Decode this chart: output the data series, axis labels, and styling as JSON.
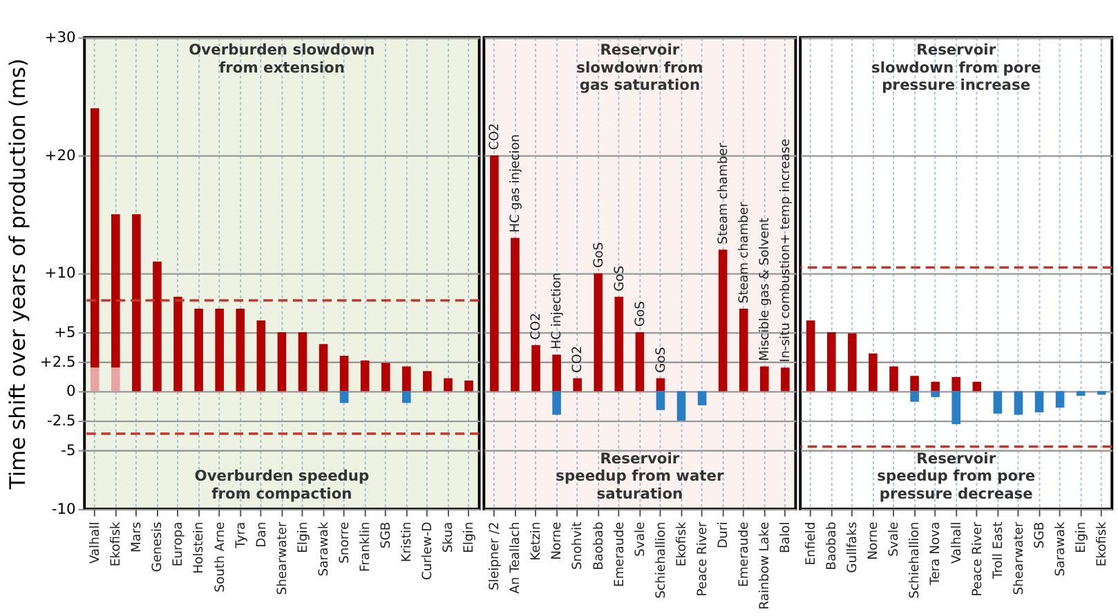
{
  "chart_data": [
    {
      "type": "bar",
      "stacked": true,
      "ylabel": "Time shift over years of production (ms)",
      "categories": [
        "Valhall",
        "Ekofisk",
        "Mars",
        "Genesis",
        "Europa",
        "Holstein",
        "South Arne",
        "Tyra",
        "Dan",
        "Shearwater",
        "Elgin",
        "Sarawak",
        "Snorre",
        "Franklin",
        "SGB",
        "Kristin",
        "Curlew-D",
        "Skua",
        "Elgin"
      ],
      "series": [
        {
          "color": "#e8a3a3",
          "values": [
            2,
            2,
            null,
            null,
            null,
            null,
            null,
            null,
            null,
            null,
            null,
            null,
            null,
            null,
            null,
            null,
            null,
            null,
            null
          ]
        },
        {
          "color": "#b30000",
          "values": [
            22,
            13,
            15,
            11,
            8,
            7,
            7,
            7,
            6,
            5,
            5,
            4,
            3,
            2.6,
            2.4,
            2.1,
            1.7,
            1.1,
            0.9
          ]
        },
        {
          "color": "#2a7fc4",
          "values": [
            null,
            null,
            null,
            null,
            null,
            null,
            null,
            null,
            null,
            null,
            null,
            null,
            -1,
            null,
            null,
            -1,
            null,
            null,
            null
          ]
        }
      ],
      "ylim": [
        -10,
        30
      ],
      "yticks": [
        {
          "value": 30,
          "label": "+30"
        },
        {
          "value": 20,
          "label": "+20"
        },
        {
          "value": 10,
          "label": "+10"
        },
        {
          "value": 5,
          "label": "+5"
        },
        {
          "value": 2.5,
          "label": "+2.5"
        },
        0,
        -2.5,
        -5,
        -10
      ],
      "grid": true,
      "ref_lines": [
        {
          "axis": "y",
          "value": 7.7,
          "color": "#c0392b",
          "line_style": "dashed"
        },
        {
          "axis": "y",
          "value": -3.6,
          "color": "#c0392b",
          "line_style": "dashed"
        }
      ],
      "annotations": [
        "Overburden slowdown\nfrom extension",
        "Overburden speedup\nfrom compaction"
      ]
    },
    {
      "type": "bar",
      "stacked": true,
      "tick_labels": "x",
      "categories": [
        "Sleipner /2",
        "An Teallach",
        "Ketzin",
        "Norne",
        "Snohvit",
        "Baobab",
        "Emeraude",
        "Svale",
        "Schiehallion",
        "Ekofisk",
        "Peace River",
        "Duri",
        "Emeraude",
        "Rainbow Lake",
        "Balol"
      ],
      "series": [
        {
          "color": "#b30000",
          "values": [
            20,
            13,
            3.9,
            3.1,
            1.1,
            10,
            8,
            5,
            1.1,
            null,
            null,
            12,
            7,
            2.1,
            2
          ],
          "value_labels": [
            "CO2",
            "HC gas injecion",
            "CO2",
            "HC injection",
            "CO2",
            "GoS",
            "GoS",
            "GoS",
            "GoS",
            null,
            null,
            "Steam chamber",
            "Steam chamber",
            "Miscible gas & Solvent",
            "In-situ combustion+ temp increase"
          ]
        },
        {
          "color": "#2a7fc4",
          "values": [
            null,
            null,
            null,
            -2,
            null,
            null,
            null,
            null,
            -1.6,
            -2.5,
            -1.2,
            null,
            null,
            null,
            null
          ]
        }
      ],
      "ylim": [
        -10,
        30
      ],
      "yticks": [
        30,
        20,
        10,
        5,
        2.5,
        0,
        -2.5,
        -5,
        -10
      ],
      "grid": true,
      "annotations": [
        "Reservoir\nslowdown from\ngas saturation",
        "Reservoir\nspeedup from water\nsaturation"
      ]
    },
    {
      "type": "bar",
      "stacked": true,
      "tick_labels": "x",
      "categories": [
        "Enfield",
        "Baobab",
        "Gullfaks",
        "Norne",
        "Svale",
        "Schiehallion",
        "Tera Nova",
        "Valhall",
        "Peace River",
        "Troll East",
        "Shearwater",
        "SGB",
        "Sarawak",
        "Elgin",
        "Ekofisk"
      ],
      "series": [
        {
          "color": "#b30000",
          "values": [
            6,
            5,
            4.9,
            3.2,
            2.1,
            1.3,
            0.8,
            1.2,
            0.8,
            null,
            null,
            null,
            null,
            null,
            null
          ]
        },
        {
          "color": "#2a7fc4",
          "values": [
            null,
            null,
            null,
            null,
            null,
            -0.9,
            -0.5,
            -2.8,
            null,
            -1.9,
            -2,
            -1.8,
            -1.4,
            -0.4,
            -0.3
          ]
        }
      ],
      "ylim": [
        -10,
        30
      ],
      "yticks": [
        30,
        20,
        10,
        5,
        2.5,
        0,
        -2.5,
        -5,
        -10
      ],
      "grid": true,
      "ref_lines": [
        {
          "axis": "y",
          "value": 10.5,
          "color": "#c0392b",
          "line_style": "dashed"
        },
        {
          "axis": "y",
          "value": -4.7,
          "color": "#c0392b",
          "line_style": "dashed"
        }
      ],
      "annotations": [
        "Reservoir\nslowdown from pore\npressure increase",
        "Reservoir\nspeedup from pore\npressure decrease"
      ]
    }
  ]
}
